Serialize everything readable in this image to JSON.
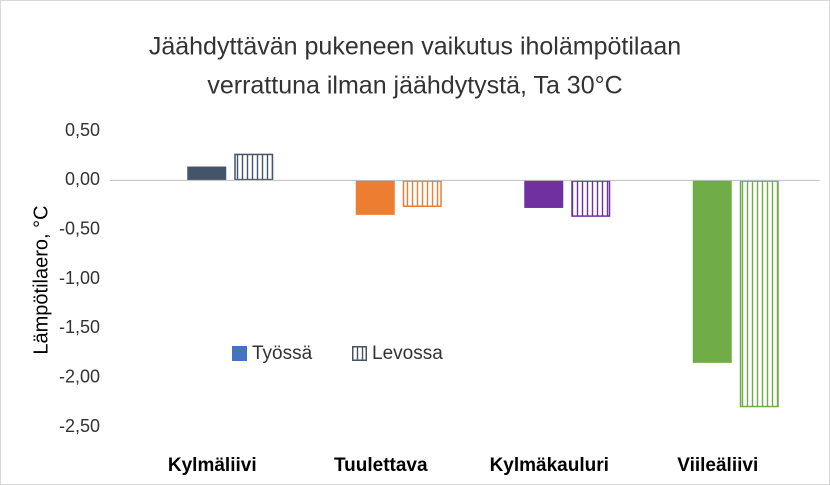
{
  "chart_data": {
    "type": "bar",
    "title_lines": [
      "Jäähdyttävän pukeneen  vaikutus iholämpötilaan",
      "verrattuna ilman jäähdytystä, Ta 30°C"
    ],
    "y_label": "Lämpötilaero, °C",
    "categories": [
      "Kylmäliivi",
      "Tuulettava",
      "Kylmäkauluri",
      "Viileäliivi"
    ],
    "category_colors": [
      "#44546a",
      "#ed7d31",
      "#7030a0",
      "#70ad47"
    ],
    "series": [
      {
        "name": "Työssä",
        "color": "#4472c4",
        "style": "solid",
        "values": [
          0.14,
          -0.35,
          -0.28,
          -1.85
        ]
      },
      {
        "name": "Levossa",
        "color": "#44546a",
        "style": "hatched",
        "values": [
          0.27,
          -0.27,
          -0.37,
          -2.3
        ]
      }
    ],
    "ylim": [
      -2.5,
      0.5
    ],
    "yticks": [
      {
        "value": 0.5,
        "label": "0,50"
      },
      {
        "value": 0,
        "label": "0,00"
      },
      {
        "value": -0.5,
        "label": "-0,50"
      },
      {
        "value": -1,
        "label": "-1,00"
      },
      {
        "value": -1.5,
        "label": "-1,50"
      },
      {
        "value": -2,
        "label": "-2,00"
      },
      {
        "value": -2.5,
        "label": "-2,50"
      }
    ],
    "grid": false
  }
}
